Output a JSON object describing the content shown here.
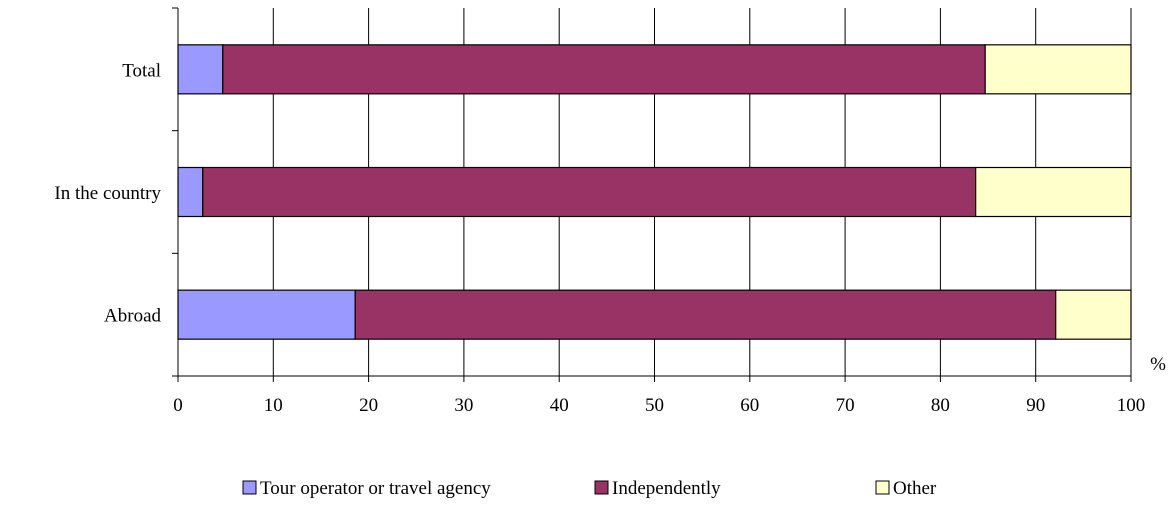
{
  "chart_data": {
    "type": "bar",
    "orientation": "horizontal",
    "stacked": true,
    "categories": [
      "Total",
      "In the country",
      "Abroad"
    ],
    "series": [
      {
        "name": "Tour operator or travel agency",
        "color": "#9999FF",
        "values": [
          4.7,
          2.6,
          18.6
        ]
      },
      {
        "name": "Independently",
        "color": "#993366",
        "values": [
          80.0,
          81.1,
          73.5
        ]
      },
      {
        "name": "Other",
        "color": "#FFFFCC",
        "values": [
          15.3,
          16.3,
          7.9
        ]
      }
    ],
    "xlabel": "%",
    "ylabel": "",
    "xlim": [
      0,
      100
    ],
    "x_ticks": [
      "0",
      "10",
      "20",
      "30",
      "40",
      "50",
      "60",
      "70",
      "80",
      "90",
      "100"
    ],
    "grid": true,
    "legend": "bottom"
  }
}
